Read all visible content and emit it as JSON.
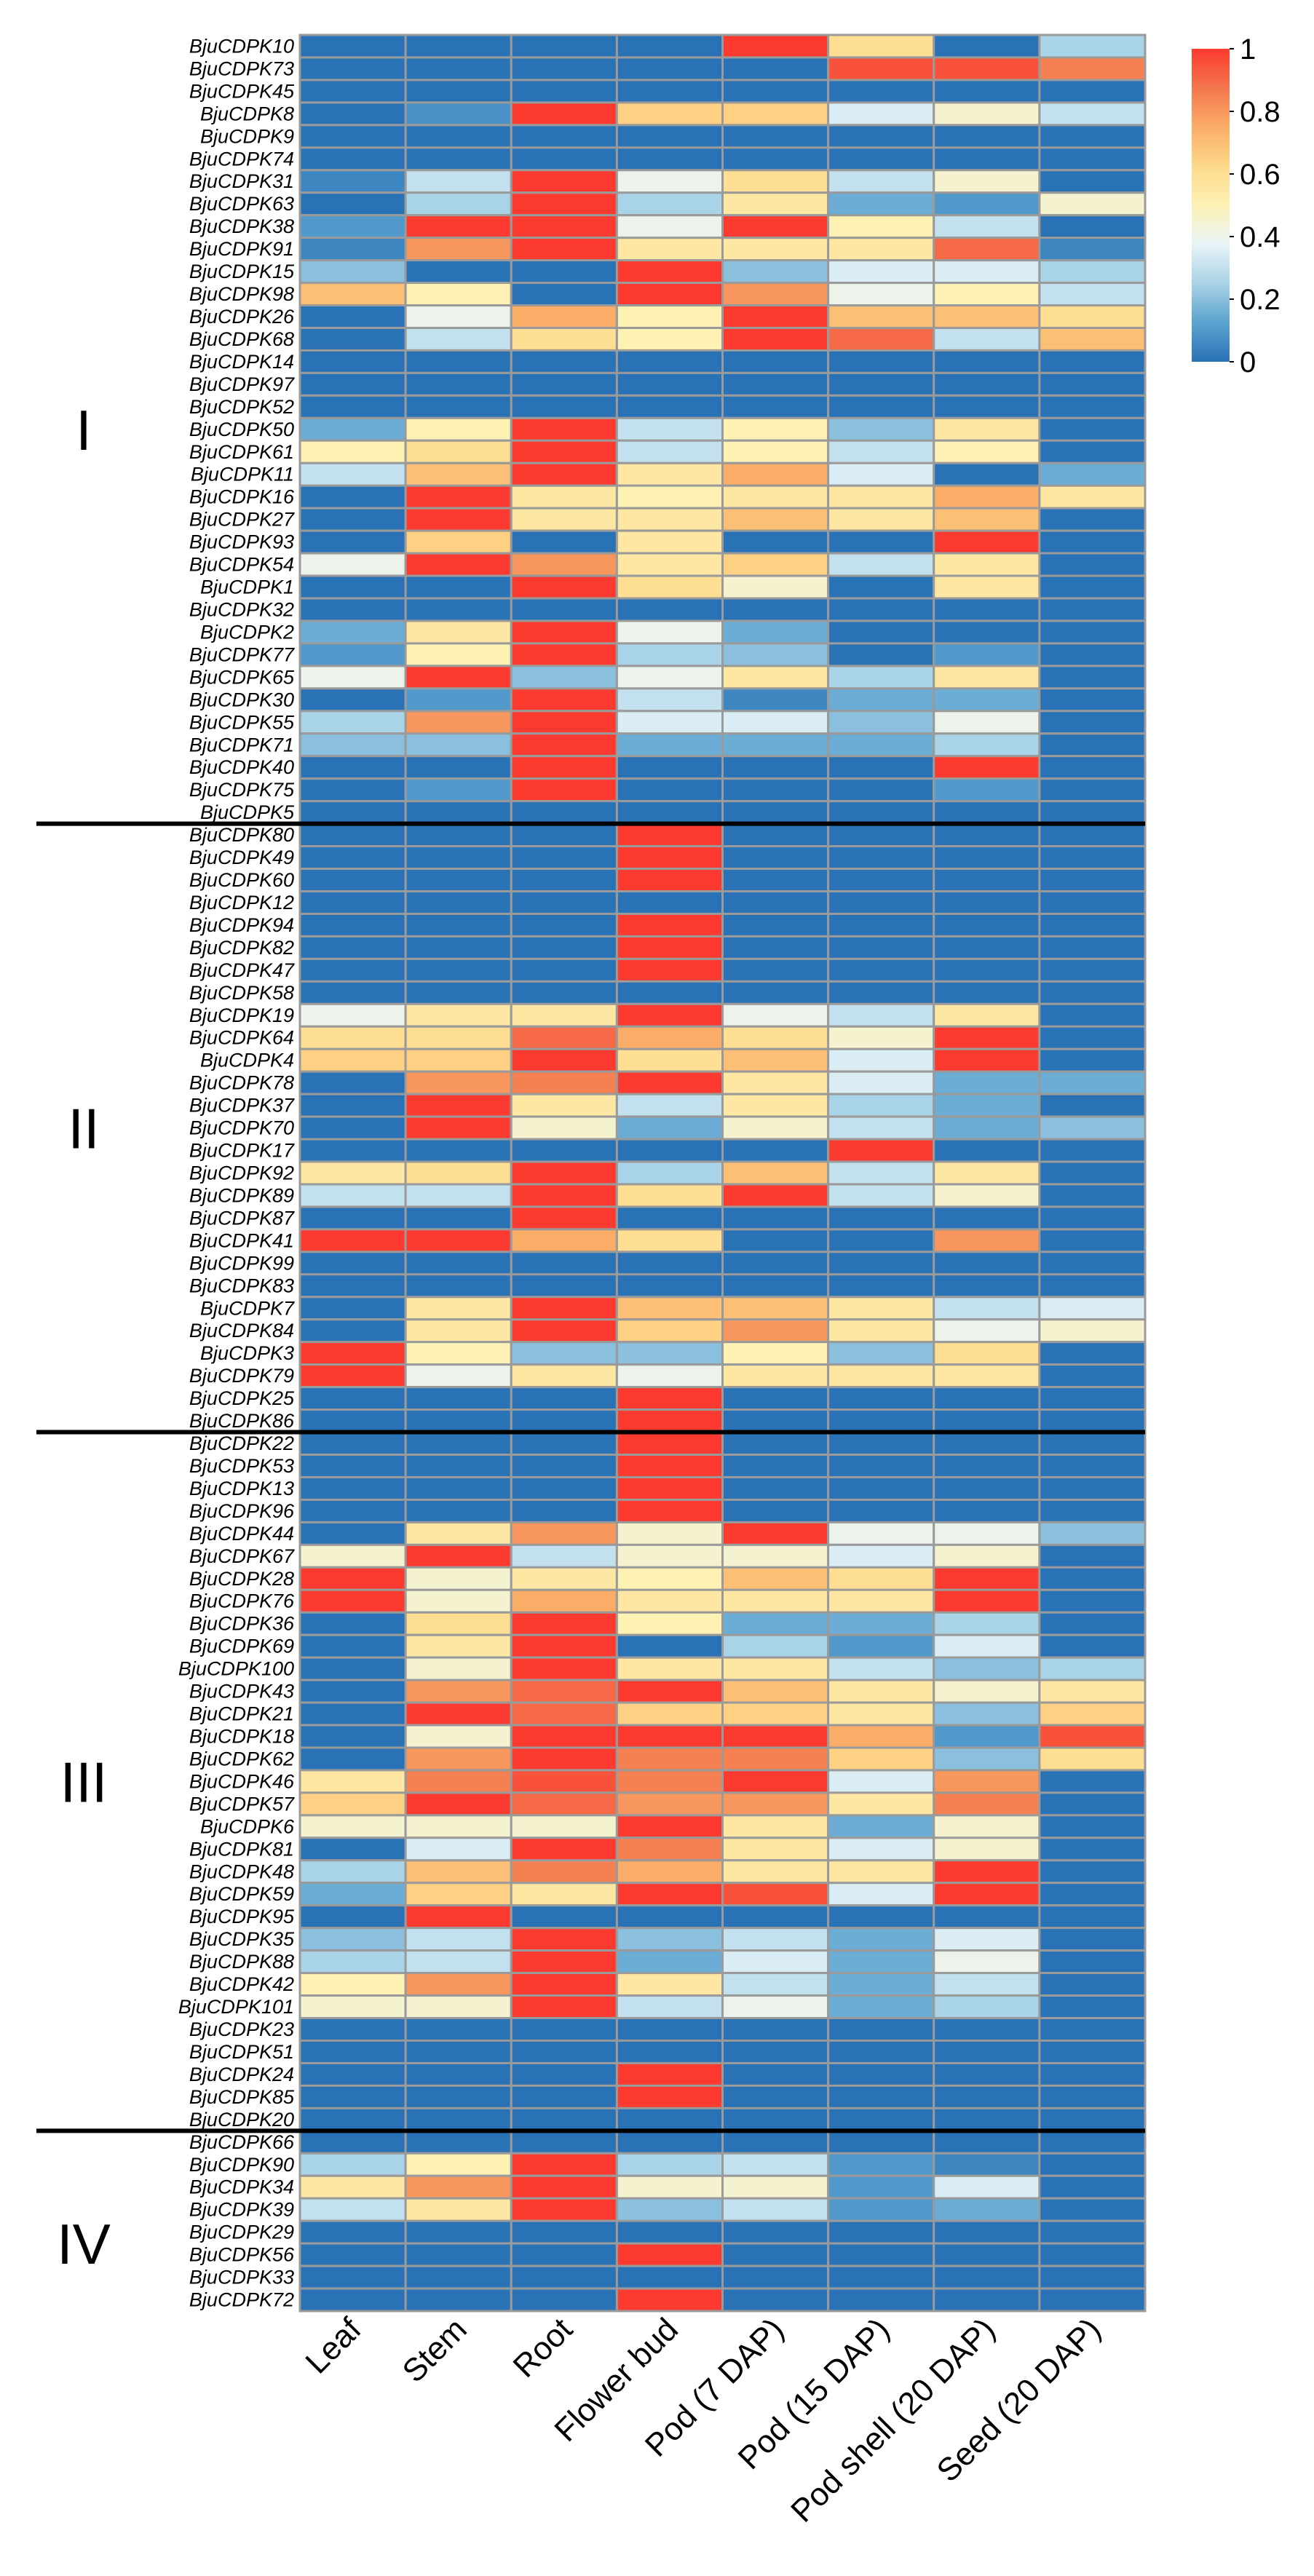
{
  "chart_data": {
    "type": "heatmap",
    "title": "",
    "color_scale": {
      "min": 0,
      "max": 1,
      "stops": [
        "#2972b6",
        "#5ba3cf",
        "#a9d3e6",
        "#e8f4f8",
        "#fdf1b4",
        "#fdd98a",
        "#fbad68",
        "#f4764d",
        "#fd3a2f"
      ],
      "ticks": [
        "0",
        "0.2",
        "0.4",
        "0.6",
        "0.8",
        "1"
      ]
    },
    "columns": [
      "Leaf",
      "Stem",
      "Root",
      "Flower bud",
      "Pod (7 DAP)",
      "Pod (15 DAP)",
      "Pod shell (20 DAP)",
      "Seed (20 DAP)"
    ],
    "groups": [
      {
        "label": "I",
        "start": 0,
        "end": 35
      },
      {
        "label": "II",
        "start": 35,
        "end": 62
      },
      {
        "label": "III",
        "start": 62,
        "end": 93
      },
      {
        "label": "IV",
        "start": 93,
        "end": 103
      }
    ],
    "rows": [
      {
        "gene": "BjuCDPK10",
        "values": [
          0,
          0,
          0,
          0,
          1,
          0.6,
          0,
          0.25
        ]
      },
      {
        "gene": "BjuCDPK73",
        "values": [
          0,
          0,
          0,
          0,
          0,
          0.95,
          0.95,
          0.85
        ]
      },
      {
        "gene": "BjuCDPK45",
        "values": [
          0,
          0,
          0,
          0,
          0,
          0,
          0,
          0
        ]
      },
      {
        "gene": "BjuCDPK8",
        "values": [
          0,
          0.08,
          1,
          0.65,
          0.65,
          0.35,
          0.45,
          0.3
        ]
      },
      {
        "gene": "BjuCDPK9",
        "values": [
          0,
          0,
          0,
          0,
          0,
          0,
          0,
          0
        ]
      },
      {
        "gene": "BjuCDPK74",
        "values": [
          0,
          0,
          0,
          0,
          0,
          0,
          0,
          0
        ]
      },
      {
        "gene": "BjuCDPK31",
        "values": [
          0.05,
          0.3,
          1,
          0.4,
          0.6,
          0.3,
          0.45,
          0
        ]
      },
      {
        "gene": "BjuCDPK63",
        "values": [
          0,
          0.25,
          1,
          0.25,
          0.55,
          0.15,
          0.1,
          0.45
        ]
      },
      {
        "gene": "BjuCDPK38",
        "values": [
          0.1,
          1,
          1,
          0.4,
          1,
          0.5,
          0.3,
          0
        ]
      },
      {
        "gene": "BjuCDPK91",
        "values": [
          0.05,
          0.8,
          1,
          0.55,
          0.55,
          0.55,
          0.9,
          0.05
        ]
      },
      {
        "gene": "BjuCDPK15",
        "values": [
          0.2,
          0,
          0,
          1,
          0.2,
          0.35,
          0.35,
          0.25
        ]
      },
      {
        "gene": "BjuCDPK98",
        "values": [
          0.7,
          0.5,
          0,
          1,
          0.8,
          0.4,
          0.5,
          0.3
        ]
      },
      {
        "gene": "BjuCDPK26",
        "values": [
          0,
          0.4,
          0.75,
          0.5,
          1,
          0.7,
          0.7,
          0.6
        ]
      },
      {
        "gene": "BjuCDPK68",
        "values": [
          0,
          0.3,
          0.6,
          0.5,
          1,
          0.9,
          0.3,
          0.7
        ]
      },
      {
        "gene": "BjuCDPK14",
        "values": [
          0,
          0,
          0,
          0,
          0,
          0,
          0,
          0
        ]
      },
      {
        "gene": "BjuCDPK97",
        "values": [
          0,
          0,
          0,
          0,
          0,
          0,
          0,
          0
        ]
      },
      {
        "gene": "BjuCDPK52",
        "values": [
          0,
          0,
          0,
          0,
          0,
          0,
          0,
          0
        ]
      },
      {
        "gene": "BjuCDPK50",
        "values": [
          0.15,
          0.5,
          1,
          0.3,
          0.5,
          0.2,
          0.55,
          0
        ]
      },
      {
        "gene": "BjuCDPK61",
        "values": [
          0.5,
          0.6,
          1,
          0.3,
          0.5,
          0.3,
          0.5,
          0
        ]
      },
      {
        "gene": "BjuCDPK11",
        "values": [
          0.3,
          0.7,
          1,
          0.55,
          0.75,
          0.35,
          0,
          0.15
        ]
      },
      {
        "gene": "BjuCDPK16",
        "values": [
          0,
          1,
          0.55,
          0.5,
          0.55,
          0.55,
          0.75,
          0.55
        ]
      },
      {
        "gene": "BjuCDPK27",
        "values": [
          0,
          1,
          0.55,
          0.55,
          0.7,
          0.55,
          0.7,
          0
        ]
      },
      {
        "gene": "BjuCDPK93",
        "values": [
          0,
          0.65,
          0,
          0.55,
          0,
          0,
          1,
          0
        ]
      },
      {
        "gene": "BjuCDPK54",
        "values": [
          0.4,
          1,
          0.8,
          0.55,
          0.65,
          0.3,
          0.55,
          0
        ]
      },
      {
        "gene": "BjuCDPK1",
        "values": [
          0,
          0,
          1,
          0.6,
          0.45,
          0,
          0.55,
          0
        ]
      },
      {
        "gene": "BjuCDPK32",
        "values": [
          0,
          0,
          0,
          0,
          0,
          0,
          0,
          0
        ]
      },
      {
        "gene": "BjuCDPK2",
        "values": [
          0.15,
          0.55,
          1,
          0.4,
          0.15,
          0,
          0,
          0
        ]
      },
      {
        "gene": "BjuCDPK77",
        "values": [
          0.1,
          0.5,
          1,
          0.25,
          0.2,
          0,
          0.1,
          0
        ]
      },
      {
        "gene": "BjuCDPK65",
        "values": [
          0.4,
          1,
          0.2,
          0.4,
          0.55,
          0.25,
          0.55,
          0
        ]
      },
      {
        "gene": "BjuCDPK30",
        "values": [
          0,
          0.1,
          1,
          0.3,
          0.05,
          0.15,
          0.15,
          0
        ]
      },
      {
        "gene": "BjuCDPK55",
        "values": [
          0.25,
          0.8,
          1,
          0.35,
          0.35,
          0.2,
          0.4,
          0
        ]
      },
      {
        "gene": "BjuCDPK71",
        "values": [
          0.2,
          0.2,
          1,
          0.15,
          0.15,
          0.15,
          0.25,
          0
        ]
      },
      {
        "gene": "BjuCDPK40",
        "values": [
          0,
          0,
          1,
          0,
          0,
          0,
          1,
          0
        ]
      },
      {
        "gene": "BjuCDPK75",
        "values": [
          0,
          0.1,
          1,
          0,
          0,
          0,
          0.1,
          0
        ]
      },
      {
        "gene": "BjuCDPK5",
        "values": [
          0,
          0,
          0,
          0,
          0,
          0,
          0,
          0
        ]
      },
      {
        "gene": "BjuCDPK80",
        "values": [
          0,
          0,
          0,
          1,
          0,
          0,
          0,
          0
        ]
      },
      {
        "gene": "BjuCDPK49",
        "values": [
          0,
          0,
          0,
          1,
          0,
          0,
          0,
          0
        ]
      },
      {
        "gene": "BjuCDPK60",
        "values": [
          0,
          0,
          0,
          1,
          0,
          0,
          0,
          0
        ]
      },
      {
        "gene": "BjuCDPK12",
        "values": [
          0,
          0,
          0,
          0,
          0,
          0,
          0,
          0
        ]
      },
      {
        "gene": "BjuCDPK94",
        "values": [
          0,
          0,
          0,
          1,
          0,
          0,
          0,
          0
        ]
      },
      {
        "gene": "BjuCDPK82",
        "values": [
          0,
          0,
          0,
          1,
          0,
          0,
          0,
          0
        ]
      },
      {
        "gene": "BjuCDPK47",
        "values": [
          0,
          0,
          0,
          1,
          0,
          0,
          0,
          0
        ]
      },
      {
        "gene": "BjuCDPK58",
        "values": [
          0,
          0,
          0,
          0,
          0,
          0,
          0,
          0
        ]
      },
      {
        "gene": "BjuCDPK19",
        "values": [
          0.4,
          0.55,
          0.55,
          1,
          0.4,
          0.3,
          0.55,
          0
        ]
      },
      {
        "gene": "BjuCDPK64",
        "values": [
          0.6,
          0.6,
          0.9,
          0.75,
          0.6,
          0.45,
          1,
          0
        ]
      },
      {
        "gene": "BjuCDPK4",
        "values": [
          0.65,
          0.65,
          1,
          0.6,
          0.7,
          0.35,
          1,
          0
        ]
      },
      {
        "gene": "BjuCDPK78",
        "values": [
          0,
          0.8,
          0.85,
          1,
          0.55,
          0.35,
          0.15,
          0.15
        ]
      },
      {
        "gene": "BjuCDPK37",
        "values": [
          0,
          1,
          0.55,
          0.3,
          0.55,
          0.25,
          0.15,
          0
        ]
      },
      {
        "gene": "BjuCDPK70",
        "values": [
          0,
          1,
          0.45,
          0.15,
          0.45,
          0.3,
          0.15,
          0.2
        ]
      },
      {
        "gene": "BjuCDPK17",
        "values": [
          0,
          0,
          0,
          0,
          0,
          1,
          0,
          0
        ]
      },
      {
        "gene": "BjuCDPK92",
        "values": [
          0.55,
          0.6,
          1,
          0.25,
          0.7,
          0.3,
          0.55,
          0
        ]
      },
      {
        "gene": "BjuCDPK89",
        "values": [
          0.3,
          0.3,
          1,
          0.6,
          1,
          0.3,
          0.45,
          0
        ]
      },
      {
        "gene": "BjuCDPK87",
        "values": [
          0,
          0,
          1,
          0,
          0,
          0,
          0,
          0
        ]
      },
      {
        "gene": "BjuCDPK41",
        "values": [
          1,
          1,
          0.75,
          0.6,
          0,
          0,
          0.8,
          0
        ]
      },
      {
        "gene": "BjuCDPK99",
        "values": [
          0,
          0,
          0,
          0,
          0,
          0,
          0,
          0
        ]
      },
      {
        "gene": "BjuCDPK83",
        "values": [
          0,
          0,
          0,
          0,
          0,
          0,
          0,
          0
        ]
      },
      {
        "gene": "BjuCDPK7",
        "values": [
          0,
          0.55,
          1,
          0.7,
          0.7,
          0.55,
          0.3,
          0.35
        ]
      },
      {
        "gene": "BjuCDPK84",
        "values": [
          0,
          0.55,
          1,
          0.65,
          0.8,
          0.55,
          0.4,
          0.45
        ]
      },
      {
        "gene": "BjuCDPK3",
        "values": [
          1,
          0.5,
          0.2,
          0.2,
          0.5,
          0.2,
          0.6,
          0
        ]
      },
      {
        "gene": "BjuCDPK79",
        "values": [
          1,
          0.4,
          0.55,
          0.4,
          0.55,
          0.55,
          0.55,
          0
        ]
      },
      {
        "gene": "BjuCDPK25",
        "values": [
          0,
          0,
          0,
          1,
          0,
          0,
          0,
          0
        ]
      },
      {
        "gene": "BjuCDPK86",
        "values": [
          0,
          0,
          0,
          1,
          0,
          0,
          0,
          0
        ]
      },
      {
        "gene": "BjuCDPK22",
        "values": [
          0,
          0,
          0,
          1,
          0,
          0,
          0,
          0
        ]
      },
      {
        "gene": "BjuCDPK53",
        "values": [
          0,
          0,
          0,
          1,
          0,
          0,
          0,
          0
        ]
      },
      {
        "gene": "BjuCDPK13",
        "values": [
          0,
          0,
          0,
          1,
          0,
          0,
          0,
          0
        ]
      },
      {
        "gene": "BjuCDPK96",
        "values": [
          0,
          0,
          0,
          1,
          0,
          0,
          0,
          0
        ]
      },
      {
        "gene": "BjuCDPK44",
        "values": [
          0,
          0.55,
          0.8,
          0.45,
          1,
          0.4,
          0.4,
          0.2
        ]
      },
      {
        "gene": "BjuCDPK67",
        "values": [
          0.45,
          1,
          0.3,
          0.45,
          0.45,
          0.35,
          0.45,
          0
        ]
      },
      {
        "gene": "BjuCDPK28",
        "values": [
          1,
          0.45,
          0.55,
          0.5,
          0.7,
          0.6,
          1,
          0
        ]
      },
      {
        "gene": "BjuCDPK76",
        "values": [
          1,
          0.45,
          0.75,
          0.55,
          0.55,
          0.55,
          1,
          0
        ]
      },
      {
        "gene": "BjuCDPK36",
        "values": [
          0,
          0.6,
          1,
          0.5,
          0.15,
          0.15,
          0.25,
          0
        ]
      },
      {
        "gene": "BjuCDPK69",
        "values": [
          0,
          0.55,
          1,
          0,
          0.25,
          0.1,
          0.35,
          0
        ]
      },
      {
        "gene": "BjuCDPK100",
        "values": [
          0,
          0.45,
          1,
          0.55,
          0.55,
          0.3,
          0.2,
          0.25
        ]
      },
      {
        "gene": "BjuCDPK43",
        "values": [
          0,
          0.8,
          0.9,
          1,
          0.7,
          0.55,
          0.45,
          0.55
        ]
      },
      {
        "gene": "BjuCDPK21",
        "values": [
          0,
          1,
          0.9,
          0.65,
          0.65,
          0.55,
          0.2,
          0.65
        ]
      },
      {
        "gene": "BjuCDPK18",
        "values": [
          0,
          0.45,
          1,
          1,
          1,
          0.75,
          0.1,
          0.95
        ]
      },
      {
        "gene": "BjuCDPK62",
        "values": [
          0,
          0.8,
          1,
          0.85,
          0.85,
          0.65,
          0.2,
          0.6
        ]
      },
      {
        "gene": "BjuCDPK46",
        "values": [
          0.55,
          0.85,
          0.95,
          0.85,
          1,
          0.35,
          0.8,
          0
        ]
      },
      {
        "gene": "BjuCDPK57",
        "values": [
          0.65,
          1,
          0.9,
          0.8,
          0.8,
          0.55,
          0.85,
          0
        ]
      },
      {
        "gene": "BjuCDPK6",
        "values": [
          0.45,
          0.45,
          0.45,
          1,
          0.55,
          0.15,
          0.45,
          0
        ]
      },
      {
        "gene": "BjuCDPK81",
        "values": [
          0,
          0.35,
          1,
          0.85,
          0.55,
          0.35,
          0.45,
          0
        ]
      },
      {
        "gene": "BjuCDPK48",
        "values": [
          0.25,
          0.7,
          0.85,
          0.75,
          0.55,
          0.55,
          1,
          0
        ]
      },
      {
        "gene": "BjuCDPK59",
        "values": [
          0.15,
          0.65,
          0.55,
          1,
          0.95,
          0.35,
          1,
          0
        ]
      },
      {
        "gene": "BjuCDPK95",
        "values": [
          0,
          1,
          0,
          0,
          0,
          0,
          0,
          0
        ]
      },
      {
        "gene": "BjuCDPK35",
        "values": [
          0.2,
          0.3,
          1,
          0.2,
          0.3,
          0.15,
          0.35,
          0
        ]
      },
      {
        "gene": "BjuCDPK88",
        "values": [
          0.25,
          0.3,
          1,
          0.15,
          0.35,
          0.15,
          0.4,
          0
        ]
      },
      {
        "gene": "BjuCDPK42",
        "values": [
          0.5,
          0.8,
          1,
          0.55,
          0.3,
          0.15,
          0.3,
          0
        ]
      },
      {
        "gene": "BjuCDPK101",
        "values": [
          0.45,
          0.45,
          1,
          0.3,
          0.4,
          0.15,
          0.25,
          0
        ]
      },
      {
        "gene": "BjuCDPK23",
        "values": [
          0,
          0,
          0,
          0,
          0,
          0,
          0,
          0
        ]
      },
      {
        "gene": "BjuCDPK51",
        "values": [
          0,
          0,
          0,
          0,
          0,
          0,
          0,
          0
        ]
      },
      {
        "gene": "BjuCDPK24",
        "values": [
          0,
          0,
          0,
          1,
          0,
          0,
          0,
          0
        ]
      },
      {
        "gene": "BjuCDPK85",
        "values": [
          0,
          0,
          0,
          1,
          0,
          0,
          0,
          0
        ]
      },
      {
        "gene": "BjuCDPK20",
        "values": [
          0,
          0,
          0,
          0,
          0,
          0,
          0,
          0
        ]
      },
      {
        "gene": "BjuCDPK66",
        "values": [
          0,
          0,
          0,
          0,
          0,
          0,
          0,
          0
        ]
      },
      {
        "gene": "BjuCDPK90",
        "values": [
          0.25,
          0.5,
          1,
          0.25,
          0.3,
          0.1,
          0.05,
          0
        ]
      },
      {
        "gene": "BjuCDPK34",
        "values": [
          0.55,
          0.8,
          1,
          0.45,
          0.45,
          0.1,
          0.35,
          0
        ]
      },
      {
        "gene": "BjuCDPK39",
        "values": [
          0.3,
          0.55,
          1,
          0.2,
          0.3,
          0.1,
          0.15,
          0
        ]
      },
      {
        "gene": "BjuCDPK29",
        "values": [
          0,
          0,
          0,
          0,
          0,
          0,
          0,
          0
        ]
      },
      {
        "gene": "BjuCDPK56",
        "values": [
          0,
          0,
          0,
          1,
          0,
          0,
          0,
          0
        ]
      },
      {
        "gene": "BjuCDPK33",
        "values": [
          0,
          0,
          0,
          0,
          0,
          0,
          0,
          0
        ]
      },
      {
        "gene": "BjuCDPK72",
        "values": [
          0,
          0,
          0,
          1,
          0,
          0,
          0,
          0
        ]
      }
    ]
  }
}
